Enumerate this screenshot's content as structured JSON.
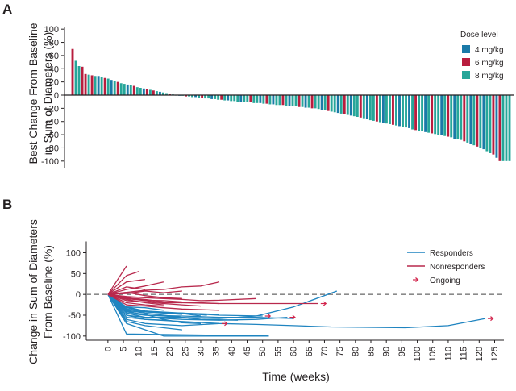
{
  "colors": {
    "dose_4": "#1a7aa8",
    "dose_6": "#b81d3e",
    "dose_8": "#26a699",
    "responders": "#1f84c0",
    "nonresponders": "#b8294d",
    "ongoing": "#d2234b",
    "axis": "#231f20",
    "zero_dash": "#8a8a8a"
  },
  "icons": {
    "ongoing": "arrow-right-icon"
  },
  "chart_data": [
    {
      "type": "bar",
      "panel_label": "A",
      "ylabel_lines": [
        "Best Change From Baseline",
        "in Sum of Diameters (%)"
      ],
      "ylim": [
        -110,
        110
      ],
      "yticks": [
        100,
        80,
        60,
        40,
        20,
        0,
        -20,
        -40,
        -60,
        -80,
        -100
      ],
      "grid": false,
      "legend": {
        "title": "Dose level",
        "position": "top-right"
      },
      "series_names": [
        "4 mg/kg",
        "6 mg/kg",
        "8 mg/kg"
      ],
      "values": [
        70,
        52,
        44,
        43,
        32,
        31,
        30,
        29,
        29,
        27,
        26,
        25,
        23,
        21,
        20,
        18,
        17,
        16,
        15,
        14,
        12,
        11,
        10,
        9,
        8,
        7,
        6,
        5,
        4,
        3,
        2,
        1,
        0,
        -1,
        -1,
        -2,
        -2,
        -3,
        -3,
        -4,
        -4,
        -5,
        -5,
        -6,
        -6,
        -7,
        -7,
        -8,
        -8,
        -9,
        -9,
        -10,
        -10,
        -10,
        -11,
        -11,
        -12,
        -12,
        -12,
        -13,
        -13,
        -14,
        -14,
        -15,
        -15,
        -15,
        -16,
        -16,
        -17,
        -17,
        -18,
        -18,
        -19,
        -19,
        -20,
        -20,
        -21,
        -22,
        -23,
        -24,
        -25,
        -26,
        -27,
        -28,
        -29,
        -30,
        -31,
        -32,
        -33,
        -34,
        -35,
        -36,
        -38,
        -39,
        -40,
        -41,
        -42,
        -43,
        -44,
        -45,
        -46,
        -47,
        -48,
        -49,
        -50,
        -52,
        -53,
        -54,
        -55,
        -56,
        -57,
        -58,
        -59,
        -60,
        -61,
        -62,
        -63,
        -64,
        -66,
        -67,
        -68,
        -70,
        -72,
        -74,
        -76,
        -78,
        -80,
        -82,
        -85,
        -88,
        -90,
        -95,
        -100,
        -100,
        -100,
        -100
      ],
      "doses": [
        "6 mg/kg",
        "8 mg/kg",
        "8 mg/kg",
        "6 mg/kg",
        "6 mg/kg",
        "8 mg/kg",
        "6 mg/kg",
        "8 mg/kg",
        "4 mg/kg",
        "8 mg/kg",
        "6 mg/kg",
        "8 mg/kg",
        "4 mg/kg",
        "8 mg/kg",
        "6 mg/kg",
        "8 mg/kg",
        "8 mg/kg",
        "4 mg/kg",
        "8 mg/kg",
        "6 mg/kg",
        "8 mg/kg",
        "8 mg/kg",
        "4 mg/kg",
        "6 mg/kg",
        "8 mg/kg",
        "6 mg/kg",
        "8 mg/kg",
        "4 mg/kg",
        "8 mg/kg",
        "8 mg/kg",
        "6 mg/kg",
        "8 mg/kg",
        "8 mg/kg",
        "4 mg/kg",
        "8 mg/kg",
        "6 mg/kg",
        "8 mg/kg",
        "8 mg/kg",
        "4 mg/kg",
        "8 mg/kg",
        "6 mg/kg",
        "8 mg/kg",
        "8 mg/kg",
        "4 mg/kg",
        "8 mg/kg",
        "8 mg/kg",
        "6 mg/kg",
        "8 mg/kg",
        "4 mg/kg",
        "8 mg/kg",
        "8 mg/kg",
        "8 mg/kg",
        "4 mg/kg",
        "8 mg/kg",
        "8 mg/kg",
        "6 mg/kg",
        "8 mg/kg",
        "8 mg/kg",
        "4 mg/kg",
        "8 mg/kg",
        "6 mg/kg",
        "8 mg/kg",
        "4 mg/kg",
        "8 mg/kg",
        "8 mg/kg",
        "6 mg/kg",
        "8 mg/kg",
        "4 mg/kg",
        "8 mg/kg",
        "8 mg/kg",
        "6 mg/kg",
        "8 mg/kg",
        "4 mg/kg",
        "8 mg/kg",
        "6 mg/kg",
        "8 mg/kg",
        "8 mg/kg",
        "4 mg/kg",
        "8 mg/kg",
        "6 mg/kg",
        "8 mg/kg",
        "8 mg/kg",
        "4 mg/kg",
        "8 mg/kg",
        "6 mg/kg",
        "8 mg/kg",
        "4 mg/kg",
        "8 mg/kg",
        "8 mg/kg",
        "6 mg/kg",
        "8 mg/kg",
        "4 mg/kg",
        "8 mg/kg",
        "8 mg/kg",
        "6 mg/kg",
        "8 mg/kg",
        "4 mg/kg",
        "8 mg/kg",
        "8 mg/kg",
        "6 mg/kg",
        "8 mg/kg",
        "4 mg/kg",
        "8 mg/kg",
        "8 mg/kg",
        "4 mg/kg",
        "8 mg/kg",
        "6 mg/kg",
        "8 mg/kg",
        "8 mg/kg",
        "4 mg/kg",
        "8 mg/kg",
        "6 mg/kg",
        "8 mg/kg",
        "8 mg/kg",
        "4 mg/kg",
        "8 mg/kg",
        "6 mg/kg",
        "8 mg/kg",
        "4 mg/kg",
        "8 mg/kg",
        "8 mg/kg",
        "6 mg/kg",
        "8 mg/kg",
        "4 mg/kg",
        "8 mg/kg",
        "6 mg/kg",
        "8 mg/kg",
        "4 mg/kg",
        "8 mg/kg",
        "8 mg/kg",
        "6 mg/kg",
        "4 mg/kg",
        "6 mg/kg",
        "8 mg/kg",
        "8 mg/kg",
        "8 mg/kg"
      ]
    },
    {
      "type": "line",
      "panel_label": "B",
      "ylabel_lines": [
        "Change in Sum of Diameters",
        "From Baseline (%)"
      ],
      "xlabel": "Time (weeks)",
      "xlim": [
        -7,
        128
      ],
      "xticks": [
        0,
        5,
        10,
        15,
        20,
        25,
        30,
        35,
        40,
        45,
        50,
        55,
        60,
        65,
        70,
        75,
        80,
        85,
        90,
        95,
        100,
        105,
        110,
        115,
        120,
        125
      ],
      "ylim": [
        -110,
        130
      ],
      "yticks": [
        100,
        50,
        0,
        -50,
        -100
      ],
      "reference_line_y": 0,
      "grid": false,
      "legend": {
        "position": "top-right",
        "entries": [
          "Responders",
          "Nonresponders",
          "Ongoing"
        ]
      },
      "series": [
        {
          "group": "responder",
          "x": [
            0,
            6,
            52
          ],
          "y": [
            0,
            -95,
            -100
          ],
          "ongoing": false
        },
        {
          "group": "responder",
          "x": [
            0,
            6,
            18,
            52
          ],
          "y": [
            0,
            -70,
            -100,
            -100
          ],
          "ongoing": false
        },
        {
          "group": "responder",
          "x": [
            0,
            6,
            12,
            24,
            36,
            48,
            60,
            74
          ],
          "y": [
            0,
            -50,
            -55,
            -55,
            -58,
            -52,
            -30,
            8
          ],
          "ongoing": false
        },
        {
          "group": "responder",
          "x": [
            0,
            6,
            12,
            24,
            36,
            48,
            60,
            72,
            96,
            110,
            122
          ],
          "y": [
            0,
            -55,
            -60,
            -65,
            -70,
            -72,
            -75,
            -78,
            -80,
            -75,
            -58
          ],
          "ongoing": true
        },
        {
          "group": "responder",
          "x": [
            0,
            6,
            12,
            24,
            36,
            48,
            60
          ],
          "y": [
            0,
            -40,
            -50,
            -52,
            -55,
            -55,
            -58
          ],
          "ongoing": false
        },
        {
          "group": "responder",
          "x": [
            0,
            6,
            12,
            24,
            36,
            48,
            58
          ],
          "y": [
            0,
            -45,
            -55,
            -60,
            -62,
            -60,
            -55
          ],
          "ongoing": true
        },
        {
          "group": "responder",
          "x": [
            0,
            6,
            12,
            24,
            36
          ],
          "y": [
            0,
            -60,
            -70,
            -75,
            -70
          ],
          "ongoing": true
        },
        {
          "group": "responder",
          "x": [
            0,
            6,
            12,
            24,
            36
          ],
          "y": [
            0,
            -35,
            -42,
            -45,
            -48
          ],
          "ongoing": false
        },
        {
          "group": "responder",
          "x": [
            0,
            6,
            12,
            24,
            32
          ],
          "y": [
            0,
            -30,
            -40,
            -45,
            -50
          ],
          "ongoing": false
        },
        {
          "group": "responder",
          "x": [
            0,
            6,
            12,
            18,
            24
          ],
          "y": [
            0,
            -65,
            -75,
            -80,
            -85
          ],
          "ongoing": false
        },
        {
          "group": "responder",
          "x": [
            0,
            6,
            12,
            18,
            24,
            30
          ],
          "y": [
            0,
            -38,
            -45,
            -50,
            -55,
            -60
          ],
          "ongoing": false
        },
        {
          "group": "responder",
          "x": [
            0,
            6,
            12,
            18,
            24
          ],
          "y": [
            0,
            -40,
            -42,
            -45,
            -48
          ],
          "ongoing": false
        },
        {
          "group": "responder",
          "x": [
            0,
            6,
            12,
            18,
            24,
            30,
            42
          ],
          "y": [
            0,
            -45,
            -50,
            -52,
            -55,
            -60,
            -62
          ],
          "ongoing": false
        },
        {
          "group": "responder",
          "x": [
            0,
            6,
            12,
            18
          ],
          "y": [
            0,
            -50,
            -60,
            -62
          ],
          "ongoing": false
        },
        {
          "group": "responder",
          "x": [
            0,
            6,
            12,
            18,
            24,
            30
          ],
          "y": [
            0,
            -42,
            -48,
            -60,
            -68,
            -70
          ],
          "ongoing": false
        },
        {
          "group": "responder",
          "x": [
            0,
            6,
            12,
            18,
            24,
            36,
            50
          ],
          "y": [
            0,
            -35,
            -42,
            -44,
            -45,
            -50,
            -52
          ],
          "ongoing": true
        },
        {
          "group": "responder",
          "x": [
            0,
            6,
            12,
            18
          ],
          "y": [
            0,
            -30,
            -32,
            -38
          ],
          "ongoing": false
        },
        {
          "group": "responder",
          "x": [
            0,
            6,
            12,
            18,
            24,
            30
          ],
          "y": [
            0,
            -32,
            -40,
            -44,
            -46,
            -52
          ],
          "ongoing": false
        },
        {
          "group": "nonresponder",
          "x": [
            0,
            6
          ],
          "y": [
            0,
            68
          ],
          "ongoing": false
        },
        {
          "group": "nonresponder",
          "x": [
            0,
            6,
            10
          ],
          "y": [
            0,
            45,
            55
          ],
          "ongoing": false
        },
        {
          "group": "nonresponder",
          "x": [
            0,
            6,
            12
          ],
          "y": [
            0,
            30,
            36
          ],
          "ongoing": false
        },
        {
          "group": "nonresponder",
          "x": [
            0,
            6,
            12,
            18
          ],
          "y": [
            0,
            12,
            20,
            30
          ],
          "ongoing": false
        },
        {
          "group": "nonresponder",
          "x": [
            0,
            6,
            12,
            18,
            24,
            30,
            36
          ],
          "y": [
            0,
            5,
            10,
            12,
            18,
            20,
            30
          ],
          "ongoing": false
        },
        {
          "group": "nonresponder",
          "x": [
            0,
            6,
            12,
            18,
            24
          ],
          "y": [
            0,
            2,
            8,
            4,
            8
          ],
          "ongoing": false
        },
        {
          "group": "nonresponder",
          "x": [
            0,
            6,
            12,
            18,
            24,
            30,
            36,
            48
          ],
          "y": [
            0,
            -5,
            -8,
            -10,
            -12,
            -15,
            -14,
            -10
          ],
          "ongoing": false
        },
        {
          "group": "nonresponder",
          "x": [
            0,
            6,
            12,
            18,
            24,
            36,
            48,
            62,
            68
          ],
          "y": [
            0,
            -10,
            -15,
            -20,
            -20,
            -22,
            -22,
            -22,
            -22
          ],
          "ongoing": true
        },
        {
          "group": "nonresponder",
          "x": [
            0,
            6,
            12,
            18,
            24,
            30
          ],
          "y": [
            0,
            -15,
            -18,
            -22,
            -25,
            -28
          ],
          "ongoing": false
        },
        {
          "group": "nonresponder",
          "x": [
            0,
            6,
            12,
            18,
            24
          ],
          "y": [
            0,
            -8,
            -12,
            -18,
            -20
          ],
          "ongoing": false
        },
        {
          "group": "nonresponder",
          "x": [
            0,
            6,
            12,
            18
          ],
          "y": [
            0,
            -20,
            -25,
            -28
          ],
          "ongoing": false
        },
        {
          "group": "nonresponder",
          "x": [
            0,
            6,
            12,
            18,
            24,
            30,
            36
          ],
          "y": [
            0,
            -10,
            -14,
            -15,
            -18,
            -20,
            -22
          ],
          "ongoing": false
        },
        {
          "group": "nonresponder",
          "x": [
            0,
            6,
            12,
            18,
            24
          ],
          "y": [
            0,
            5,
            -3,
            -8,
            -10
          ],
          "ongoing": false
        },
        {
          "group": "nonresponder",
          "x": [
            0,
            6,
            12
          ],
          "y": [
            0,
            18,
            12
          ],
          "ongoing": false
        },
        {
          "group": "nonresponder",
          "x": [
            0,
            6,
            12,
            18
          ],
          "y": [
            0,
            -12,
            -20,
            -25
          ],
          "ongoing": false
        },
        {
          "group": "nonresponder",
          "x": [
            0,
            6,
            12,
            18,
            24,
            36
          ],
          "y": [
            0,
            -25,
            -28,
            -32,
            -35,
            -38
          ],
          "ongoing": false
        }
      ]
    }
  ]
}
